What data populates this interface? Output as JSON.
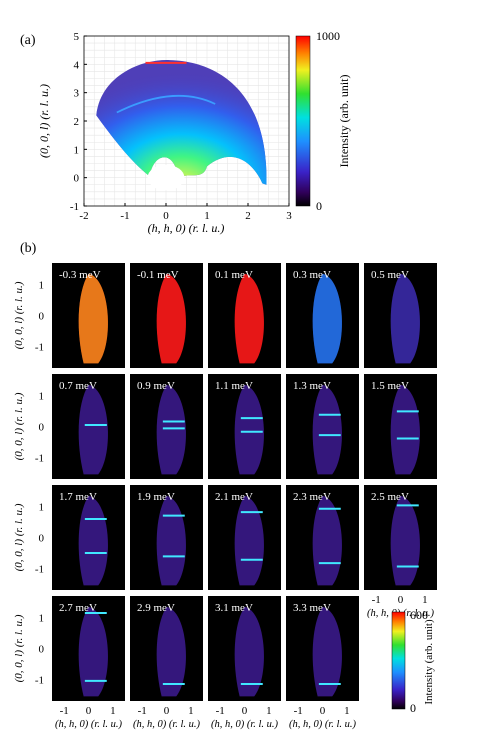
{
  "chart_data": [
    {
      "type": "heatmap",
      "panel_label": "(a)",
      "xlabel": "(h, h, 0) (r. l. u.)",
      "ylabel": "(0, 0, l) (r. l. u.)",
      "xlim": [
        -2,
        3
      ],
      "ylim": [
        -1,
        5
      ],
      "xticks": [
        "-2",
        "-1",
        "0",
        "1",
        "2",
        "3"
      ],
      "yticks": [
        "-1",
        "0",
        "1",
        "2",
        "3",
        "4",
        "5"
      ],
      "colorbar": {
        "label": "Intensity (arb. unit)",
        "min": 0,
        "max": 1000,
        "ticks": [
          "0",
          "1000"
        ]
      },
      "grid": true
    },
    {
      "type": "heatmap",
      "panel_label": "(b)",
      "xlabel": "(h, h, 0) (r. l. u.)",
      "ylabel": "(0, 0, l) (r. l. u.)",
      "xlim": [
        -1.5,
        1.5
      ],
      "ylim": [
        -1.7,
        1.7
      ],
      "xticks": [
        "-1",
        "0",
        "1"
      ],
      "yticks": [
        "1",
        "0",
        "-1"
      ],
      "energies": [
        "-0.3 meV",
        "-0.1 meV",
        "0.1 meV",
        "0.3 meV",
        "0.5 meV",
        "0.7 meV",
        "0.9 meV",
        "1.1 meV",
        "1.3 meV",
        "1.5 meV",
        "1.7 meV",
        "1.9 meV",
        "2.1 meV",
        "2.3 meV",
        "2.5 meV",
        "2.7 meV",
        "2.9 meV",
        "3.1 meV",
        "3.3 meV"
      ],
      "colorbar": {
        "label": "Intensity (arb. unit)",
        "min": 0,
        "max": 600,
        "ticks": [
          "0",
          "600"
        ]
      }
    }
  ]
}
